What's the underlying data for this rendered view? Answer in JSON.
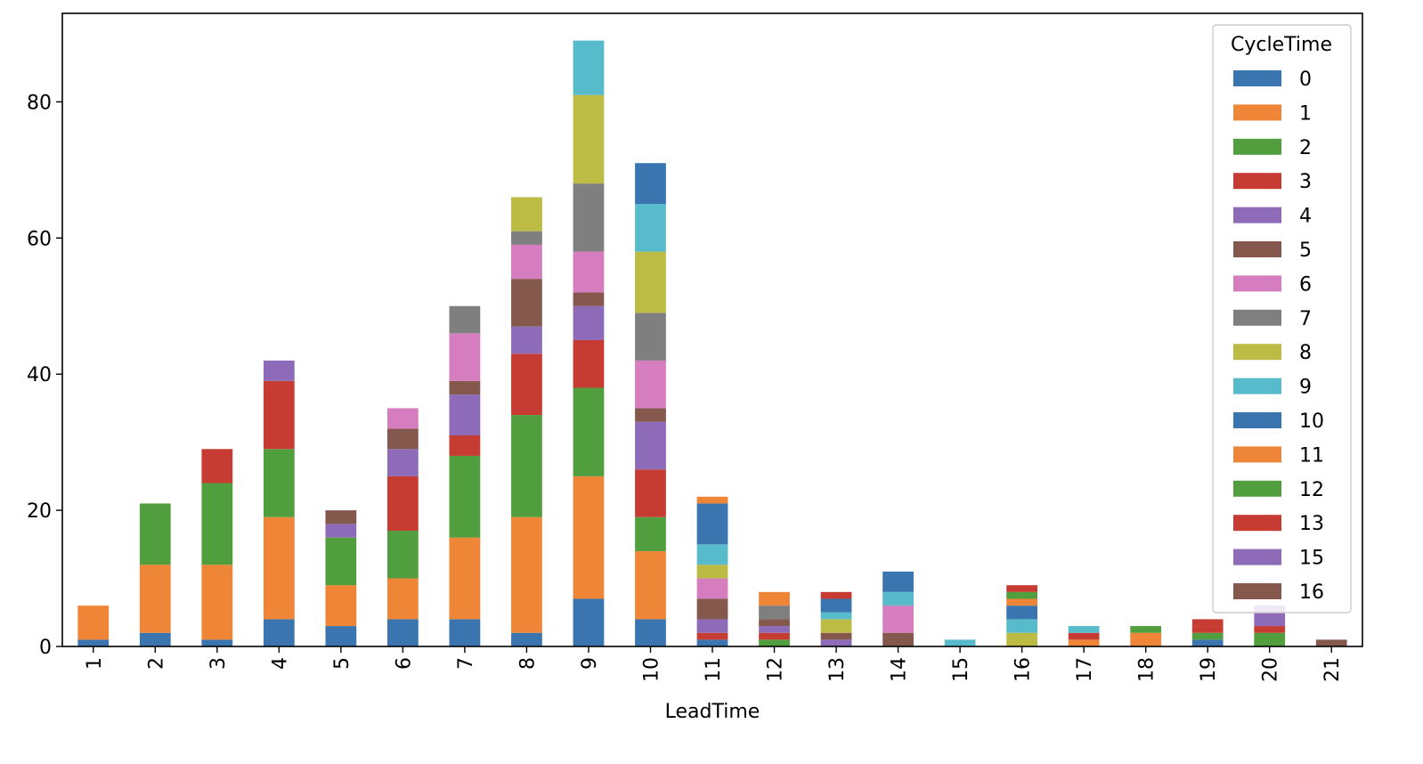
{
  "chart_data": {
    "type": "bar",
    "stacked": true,
    "title": "",
    "xlabel": "LeadTime",
    "ylabel": "",
    "categories": [
      "1",
      "2",
      "3",
      "4",
      "5",
      "6",
      "7",
      "8",
      "9",
      "10",
      "11",
      "12",
      "13",
      "14",
      "15",
      "16",
      "17",
      "18",
      "19",
      "20",
      "21"
    ],
    "ylim": [
      0,
      93
    ],
    "yticks": [
      0,
      20,
      40,
      60,
      80
    ],
    "grid": false,
    "legend": {
      "title": "CycleTime",
      "placement": "top-right"
    },
    "series": [
      {
        "name": "0",
        "color": "#3a75af",
        "values": [
          1,
          2,
          1,
          4,
          3,
          4,
          4,
          2,
          7,
          4,
          1,
          0,
          0,
          0,
          0,
          0,
          0,
          0,
          1,
          0,
          0
        ]
      },
      {
        "name": "1",
        "color": "#ef8536",
        "values": [
          5,
          10,
          11,
          15,
          6,
          6,
          12,
          17,
          18,
          10,
          0,
          0,
          0,
          0,
          0,
          0,
          1,
          2,
          0,
          0,
          0
        ]
      },
      {
        "name": "2",
        "color": "#519e3e",
        "values": [
          0,
          9,
          12,
          10,
          7,
          7,
          12,
          15,
          13,
          5,
          0,
          1,
          0,
          0,
          0,
          0,
          0,
          1,
          1,
          2,
          0
        ]
      },
      {
        "name": "3",
        "color": "#c63c32",
        "values": [
          0,
          0,
          5,
          10,
          0,
          8,
          3,
          9,
          7,
          7,
          1,
          1,
          0,
          0,
          0,
          0,
          1,
          0,
          1,
          1,
          0
        ]
      },
      {
        "name": "4",
        "color": "#8d6bb8",
        "values": [
          0,
          0,
          0,
          3,
          2,
          4,
          6,
          4,
          5,
          7,
          2,
          1,
          1,
          0,
          0,
          0,
          0,
          0,
          0,
          2,
          0
        ]
      },
      {
        "name": "5",
        "color": "#85584e",
        "values": [
          0,
          0,
          0,
          0,
          2,
          3,
          2,
          7,
          2,
          2,
          3,
          1,
          1,
          2,
          0,
          0,
          0,
          0,
          0,
          0,
          1
        ]
      },
      {
        "name": "6",
        "color": "#d57dbe",
        "values": [
          0,
          0,
          0,
          0,
          0,
          3,
          7,
          5,
          6,
          7,
          3,
          0,
          0,
          4,
          0,
          0,
          0,
          0,
          0,
          0,
          0
        ]
      },
      {
        "name": "7",
        "color": "#7f7f7f",
        "values": [
          0,
          0,
          0,
          0,
          0,
          0,
          4,
          2,
          10,
          7,
          0,
          2,
          0,
          0,
          0,
          0,
          0,
          0,
          0,
          0,
          0
        ]
      },
      {
        "name": "8",
        "color": "#bcbc45",
        "values": [
          0,
          0,
          0,
          0,
          0,
          0,
          0,
          5,
          13,
          9,
          2,
          0,
          2,
          0,
          0,
          2,
          0,
          0,
          0,
          0,
          0
        ]
      },
      {
        "name": "9",
        "color": "#58bbcc",
        "values": [
          0,
          0,
          0,
          0,
          0,
          0,
          0,
          0,
          8,
          7,
          3,
          0,
          1,
          2,
          1,
          2,
          1,
          0,
          0,
          0,
          0
        ]
      },
      {
        "name": "10",
        "color": "#3a75af",
        "values": [
          0,
          0,
          0,
          0,
          0,
          0,
          0,
          0,
          0,
          6,
          6,
          0,
          2,
          3,
          0,
          2,
          0,
          0,
          0,
          0,
          0
        ]
      },
      {
        "name": "11",
        "color": "#ef8536",
        "values": [
          0,
          0,
          0,
          0,
          0,
          0,
          0,
          0,
          0,
          0,
          1,
          2,
          0,
          0,
          0,
          1,
          0,
          0,
          0,
          0,
          0
        ]
      },
      {
        "name": "12",
        "color": "#519e3e",
        "values": [
          0,
          0,
          0,
          0,
          0,
          0,
          0,
          0,
          0,
          0,
          0,
          0,
          0,
          0,
          0,
          1,
          0,
          0,
          0,
          0,
          0
        ]
      },
      {
        "name": "13",
        "color": "#c63c32",
        "values": [
          0,
          0,
          0,
          0,
          0,
          0,
          0,
          0,
          0,
          0,
          0,
          0,
          1,
          0,
          0,
          1,
          0,
          0,
          1,
          0,
          0
        ]
      },
      {
        "name": "15",
        "color": "#8d6bb8",
        "values": [
          0,
          0,
          0,
          0,
          0,
          0,
          0,
          0,
          0,
          0,
          0,
          0,
          0,
          0,
          0,
          0,
          0,
          0,
          0,
          1,
          0
        ]
      },
      {
        "name": "16",
        "color": "#85584e",
        "values": [
          0,
          0,
          0,
          0,
          0,
          0,
          0,
          0,
          0,
          0,
          0,
          0,
          0,
          0,
          0,
          0,
          0,
          0,
          0,
          0,
          0
        ]
      }
    ]
  }
}
